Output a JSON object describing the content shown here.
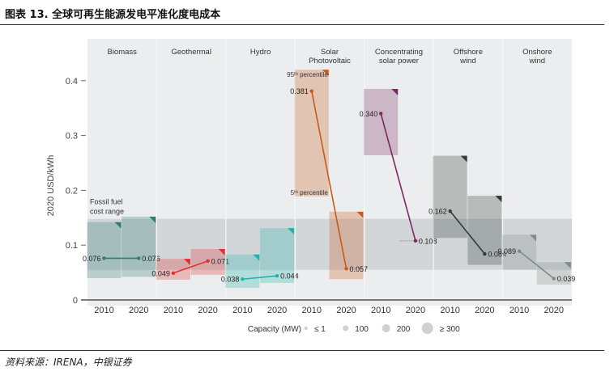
{
  "figure_title": "图表 13. 全球可再生能源发电平准化度电成本",
  "source_note": "资料来源：IRENA，中银证券",
  "colors": {
    "panel_bg": "#ecedee",
    "fossil_band": "#cfd1d3",
    "axis_text": "#444444",
    "Biomass": "#2f7f72",
    "Geothermal": "#e0312e",
    "Hydro": "#1fb3aa",
    "Solar Photovoltaic": "#c85a1c",
    "Concentrating solar power": "#7b2a63",
    "Offshore wind": "#2e3d3b",
    "Onshore wind": "#7f8b88"
  },
  "chart_data": {
    "type": "scatter",
    "ylabel": "2020 USD/kWh",
    "xlabel": "Capacity (MW)",
    "ylim": [
      0,
      0.42
    ],
    "yticks": [
      0,
      0.1,
      0.2,
      0.3,
      0.4
    ],
    "ytick_labels": [
      "0",
      "0.1",
      "0.2",
      "0.3",
      "0.4"
    ],
    "fossil_band": {
      "label_line1": "Fossil fuel",
      "label_line2": "cost range",
      "range": [
        0.055,
        0.148
      ]
    },
    "percentile_labels": {
      "p95": "95ᵗʰ percentile",
      "p5": "5ᵗʰ percentile"
    },
    "size_legend": [
      {
        "label": "≤ 1",
        "size": 1
      },
      {
        "label": "100",
        "size": 2
      },
      {
        "label": "200",
        "size": 3
      },
      {
        "label": "≥ 300",
        "size": 4
      }
    ],
    "series": [
      {
        "name": "Biomass",
        "name_line1": "Biomass",
        "name_line2": "",
        "years": [
          "2010",
          "2020"
        ],
        "values": [
          0.076,
          0.076
        ],
        "value_labels": [
          "0.076",
          "0.076"
        ],
        "p5": [
          0.04,
          0.042
        ],
        "p95": [
          0.142,
          0.152
        ]
      },
      {
        "name": "Geothermal",
        "name_line1": "Geothermal",
        "name_line2": "",
        "years": [
          "2010",
          "2020"
        ],
        "values": [
          0.049,
          0.071
        ],
        "value_labels": [
          "0.049",
          "0.071"
        ],
        "p5": [
          0.037,
          0.046
        ],
        "p95": [
          0.075,
          0.093
        ]
      },
      {
        "name": "Hydro",
        "name_line1": "Hydro",
        "name_line2": "",
        "years": [
          "2010",
          "2020"
        ],
        "values": [
          0.038,
          0.044
        ],
        "value_labels": [
          "0.038",
          "0.044"
        ],
        "p5": [
          0.022,
          0.031
        ],
        "p95": [
          0.083,
          0.131
        ]
      },
      {
        "name": "Solar Photovoltaic",
        "name_line1": "Solar",
        "name_line2": "Photovoltaic",
        "years": [
          "2010",
          "2020"
        ],
        "values": [
          0.381,
          0.057
        ],
        "value_labels": [
          "0.381",
          "0.057"
        ],
        "p5": [
          0.189,
          0.038
        ],
        "p95": [
          0.42,
          0.161
        ]
      },
      {
        "name": "Concentrating solar power",
        "name_line1": "Concentrating",
        "name_line2": "solar power",
        "years": [
          "2010",
          "2020"
        ],
        "values": [
          0.34,
          0.108
        ],
        "value_labels": [
          "0.340",
          "0.108"
        ],
        "p5": [
          0.264,
          0.108
        ],
        "p95": [
          0.385,
          0.108
        ]
      },
      {
        "name": "Offshore wind",
        "name_line1": "Offshore",
        "name_line2": "wind",
        "years": [
          "2010",
          "2020"
        ],
        "values": [
          0.162,
          0.084
        ],
        "value_labels": [
          "0.162",
          "0.084"
        ],
        "p5": [
          0.113,
          0.064
        ],
        "p95": [
          0.263,
          0.19
        ]
      },
      {
        "name": "Onshore wind",
        "name_line1": "Onshore",
        "name_line2": "wind",
        "years": [
          "2010",
          "2020"
        ],
        "values": [
          0.089,
          0.039
        ],
        "value_labels": [
          "0.089",
          "0.039"
        ],
        "p5": [
          0.055,
          0.028
        ],
        "p95": [
          0.119,
          0.069
        ]
      }
    ]
  }
}
